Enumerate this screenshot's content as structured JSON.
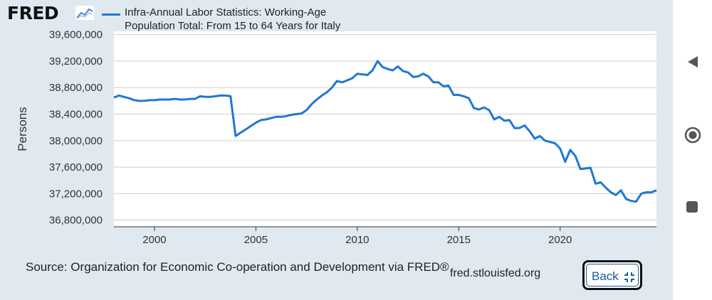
{
  "header": {
    "logo_text": "FRED",
    "logo_icon": "line-graph-icon",
    "legend_label_line1": "Infra-Annual Labor Statistics: Working-Age",
    "legend_label_line2": "Population Total: From 15 to 64 Years for Italy"
  },
  "footer": {
    "source": "Source: Organization for Economic Co-operation and Development via FRED®",
    "url": "fred.stlouisfed.org",
    "back_label": "Back",
    "back_icon": "collapse-icon"
  },
  "nav": {
    "back_icon": "triangle-back-icon",
    "home_icon": "circle-home-icon",
    "recents_icon": "square-recents-icon"
  },
  "colors": {
    "series": "#1f77d4",
    "panel_bg": "#e1e9f0",
    "plot_bg": "#ffffff"
  },
  "chart_data": {
    "type": "line",
    "title": "",
    "xlabel": "",
    "ylabel": "Persons",
    "xlim": [
      1998.0,
      2024.75
    ],
    "ylim": [
      36700000,
      39650000
    ],
    "yticks": [
      36800000,
      37200000,
      37600000,
      38000000,
      38400000,
      38800000,
      39200000,
      39600000
    ],
    "ytick_labels": [
      "36,800,000",
      "37,200,000",
      "37,600,000",
      "38,000,000",
      "38,400,000",
      "38,800,000",
      "39,200,000",
      "39,600,000"
    ],
    "xticks": [
      2000,
      2005,
      2010,
      2015,
      2020
    ],
    "xtick_labels": [
      "2000",
      "2005",
      "2010",
      "2015",
      "2020"
    ],
    "grid": "horizontal",
    "legend": "top",
    "series": [
      {
        "name": "Infra-Annual Labor Statistics: Working-Age Population Total: From 15 to 64 Years for Italy",
        "color": "#1f77d4",
        "x": [
          1998.0,
          1998.25,
          1998.5,
          1998.75,
          1999.0,
          1999.25,
          1999.5,
          1999.75,
          2000.0,
          2000.25,
          2000.5,
          2000.75,
          2001.0,
          2001.25,
          2001.5,
          2001.75,
          2002.0,
          2002.25,
          2002.5,
          2002.75,
          2003.0,
          2003.25,
          2003.5,
          2003.75,
          2004.0,
          2004.25,
          2004.5,
          2004.75,
          2005.0,
          2005.25,
          2005.5,
          2005.75,
          2006.0,
          2006.25,
          2006.5,
          2006.75,
          2007.0,
          2007.25,
          2007.5,
          2007.75,
          2008.0,
          2008.25,
          2008.5,
          2008.75,
          2009.0,
          2009.25,
          2009.5,
          2009.75,
          2010.0,
          2010.25,
          2010.5,
          2010.75,
          2011.0,
          2011.25,
          2011.5,
          2011.75,
          2012.0,
          2012.25,
          2012.5,
          2012.75,
          2013.0,
          2013.25,
          2013.5,
          2013.75,
          2014.0,
          2014.25,
          2014.5,
          2014.75,
          2015.0,
          2015.25,
          2015.5,
          2015.75,
          2016.0,
          2016.25,
          2016.5,
          2016.75,
          2017.0,
          2017.25,
          2017.5,
          2017.75,
          2018.0,
          2018.25,
          2018.5,
          2018.75,
          2019.0,
          2019.25,
          2019.5,
          2019.75,
          2020.0,
          2020.25,
          2020.5,
          2020.75,
          2021.0,
          2021.25,
          2021.5,
          2021.75,
          2022.0,
          2022.25,
          2022.5,
          2022.75,
          2023.0,
          2023.25,
          2023.5,
          2023.75,
          2024.0,
          2024.25,
          2024.5,
          2024.75
        ],
        "y": [
          38650000,
          38680000,
          38660000,
          38640000,
          38610000,
          38600000,
          38600000,
          38610000,
          38610000,
          38620000,
          38620000,
          38620000,
          38630000,
          38620000,
          38620000,
          38630000,
          38630000,
          38670000,
          38660000,
          38660000,
          38670000,
          38680000,
          38680000,
          38670000,
          38070000,
          38120000,
          38170000,
          38220000,
          38270000,
          38310000,
          38320000,
          38340000,
          38360000,
          38360000,
          38370000,
          38390000,
          38400000,
          38410000,
          38460000,
          38550000,
          38620000,
          38680000,
          38730000,
          38800000,
          38900000,
          38880000,
          38910000,
          38940000,
          39010000,
          39000000,
          38990000,
          39060000,
          39200000,
          39110000,
          39080000,
          39060000,
          39120000,
          39050000,
          39030000,
          38960000,
          38970000,
          39010000,
          38970000,
          38880000,
          38880000,
          38820000,
          38830000,
          38690000,
          38690000,
          38670000,
          38640000,
          38490000,
          38470000,
          38500000,
          38460000,
          38320000,
          38360000,
          38300000,
          38310000,
          38190000,
          38190000,
          38230000,
          38140000,
          38030000,
          38070000,
          38000000,
          37980000,
          37960000,
          37880000,
          37680000,
          37860000,
          37770000,
          37570000,
          37580000,
          37590000,
          37350000,
          37370000,
          37290000,
          37220000,
          37180000,
          37250000,
          37120000,
          37090000,
          37080000,
          37200000,
          37220000,
          37220000,
          37250000
        ]
      }
    ]
  }
}
